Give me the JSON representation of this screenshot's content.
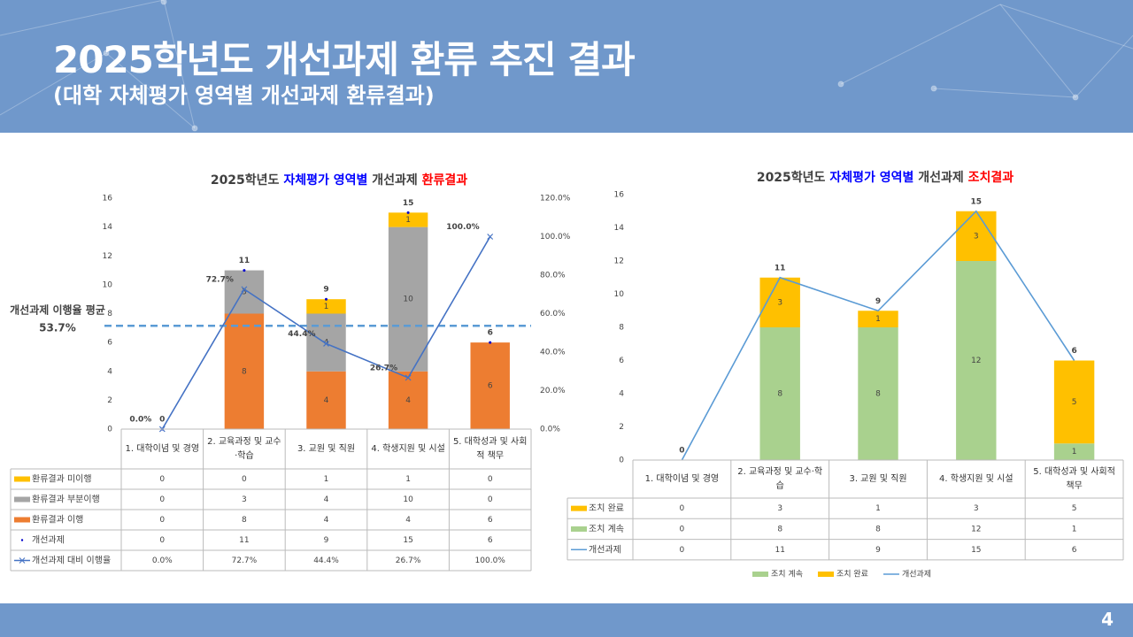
{
  "header": {
    "title": "2025학년도 개선과제 환류 추진 결과",
    "subtitle": "(대학 자체평가 영역별 개선과제 환류결과)"
  },
  "page_number": "4",
  "chart_data": [
    {
      "type": "bar",
      "stacked": true,
      "title_parts": [
        {
          "text": "2025학년도 ",
          "color": "#404040"
        },
        {
          "text": "자체평가 영역별",
          "color": "#0000FF"
        },
        {
          "text": " 개선과제 ",
          "color": "#404040"
        },
        {
          "text": "환류결과",
          "color": "#FF0000"
        }
      ],
      "categories": [
        "1. 대학이념 및 경영",
        "2. 교육과정 및 교수·학습",
        "3. 교원 및 직원",
        "4. 학생지원 및 시설",
        "5. 대학성과 및 사회적 책무"
      ],
      "series": [
        {
          "name": "환류결과 이행",
          "type": "bar",
          "color": "#ED7D31",
          "values": [
            0,
            8,
            4,
            4,
            6
          ]
        },
        {
          "name": "환류결과 부분이행",
          "type": "bar",
          "color": "#A5A5A5",
          "values": [
            0,
            3,
            4,
            10,
            0
          ]
        },
        {
          "name": "환류결과 미이행",
          "type": "bar",
          "color": "#FFC000",
          "values": [
            0,
            0,
            1,
            1,
            0
          ]
        },
        {
          "name": "개선과제",
          "type": "scatter",
          "color": "#0000CC",
          "label_color": "#0000CC",
          "values": [
            0,
            11,
            9,
            15,
            6
          ]
        },
        {
          "name": "개선과제 대비 이행율",
          "type": "line",
          "axis": "y2",
          "marker": "x",
          "color": "#4472C4",
          "label_color": "#222222",
          "values": [
            0,
            72.7,
            44.4,
            26.7,
            100
          ],
          "value_labels": [
            "0.0%",
            "72.7%",
            "44.4%",
            "26.7%",
            "100.0%"
          ]
        }
      ],
      "ylim": [
        0,
        16
      ],
      "yticks": [
        0,
        2,
        4,
        6,
        8,
        10,
        12,
        14,
        16
      ],
      "y2lim": [
        0,
        120
      ],
      "y2ticks": [
        {
          "value": 0,
          "label": "0.0%"
        },
        {
          "value": 20,
          "label": "20.0%"
        },
        {
          "value": 40,
          "label": "40.0%"
        },
        {
          "value": 60,
          "label": "60.0%"
        },
        {
          "value": 80,
          "label": "80.0%"
        },
        {
          "value": 100,
          "label": "100.0%"
        },
        {
          "value": 120,
          "label": "120.0%"
        }
      ],
      "grid": false,
      "data_table": true,
      "average": {
        "label": "개선과제 이행율 평균",
        "value": 53.7,
        "value_label": "53.7%",
        "axis": "y2",
        "color": "#5B9BD5"
      }
    },
    {
      "type": "bar",
      "stacked": true,
      "title_parts": [
        {
          "text": "2025학년도 ",
          "color": "#404040"
        },
        {
          "text": "자체평가 영역별",
          "color": "#0000FF"
        },
        {
          "text": " 개선과제 ",
          "color": "#404040"
        },
        {
          "text": "조치결과",
          "color": "#FF0000"
        }
      ],
      "categories": [
        "1. 대학이념 및 경영",
        "2. 교육과정 및 교수·학습",
        "3. 교원 및 직원",
        "4. 학생지원 및 시설",
        "5. 대학성과 및 사회적 책무"
      ],
      "series": [
        {
          "name": "조치 계속",
          "type": "bar",
          "color": "#A9D18E",
          "values": [
            0,
            8,
            8,
            12,
            1
          ]
        },
        {
          "name": "조치 완료",
          "type": "bar",
          "color": "#FFC000",
          "values": [
            0,
            3,
            1,
            3,
            5
          ]
        },
        {
          "name": "개선과제",
          "type": "line",
          "color": "#5B9BD5",
          "label_color": "#FF0000",
          "values": [
            0,
            11,
            9,
            15,
            6
          ]
        }
      ],
      "ylim": [
        0,
        16
      ],
      "yticks": [
        0,
        2,
        4,
        6,
        8,
        10,
        12,
        14,
        16
      ],
      "grid": false,
      "data_table": true,
      "legend": "bottom"
    }
  ]
}
